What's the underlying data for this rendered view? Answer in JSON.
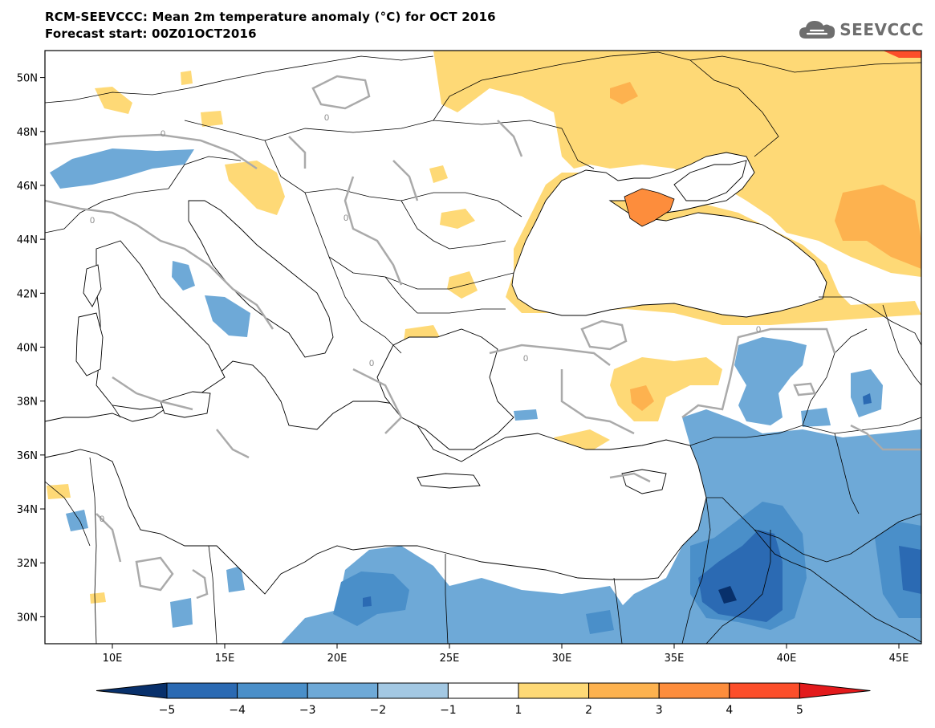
{
  "header": {
    "title_line1": "RCM-SEEVCCC: Mean 2m temperature anomaly (°C) for OCT 2016",
    "title_line2": "Forecast start: 00Z01OCT2016",
    "logo_text": "SEEVCCC",
    "logo_icon": "cloud-icon"
  },
  "map": {
    "lon_range": [
      7,
      46
    ],
    "lat_range": [
      29,
      51
    ],
    "lat_ticks": [
      {
        "value": 30,
        "label": "30N"
      },
      {
        "value": 32,
        "label": "32N"
      },
      {
        "value": 34,
        "label": "34N"
      },
      {
        "value": 36,
        "label": "36N"
      },
      {
        "value": 38,
        "label": "38N"
      },
      {
        "value": 40,
        "label": "40N"
      },
      {
        "value": 42,
        "label": "42N"
      },
      {
        "value": 44,
        "label": "44N"
      },
      {
        "value": 46,
        "label": "46N"
      },
      {
        "value": 48,
        "label": "48N"
      },
      {
        "value": 50,
        "label": "50N"
      }
    ],
    "lon_ticks": [
      {
        "value": 10,
        "label": "10E"
      },
      {
        "value": 15,
        "label": "15E"
      },
      {
        "value": 20,
        "label": "20E"
      },
      {
        "value": 25,
        "label": "25E"
      },
      {
        "value": 30,
        "label": "30E"
      },
      {
        "value": 35,
        "label": "35E"
      },
      {
        "value": 40,
        "label": "40E"
      },
      {
        "value": 45,
        "label": "45E"
      }
    ],
    "contour_label": "0"
  },
  "colorbar": {
    "labels": [
      "−5",
      "−4",
      "−3",
      "−2",
      "−1",
      "1",
      "2",
      "3",
      "4",
      "5"
    ],
    "colors": [
      "#08306b",
      "#2b6ab3",
      "#4a8fc9",
      "#6ea9d7",
      "#a3c8e3",
      "#ffffff",
      "#fed976",
      "#fdb24f",
      "#fd8d3c",
      "#fc4e2a",
      "#e31a1c"
    ]
  }
}
